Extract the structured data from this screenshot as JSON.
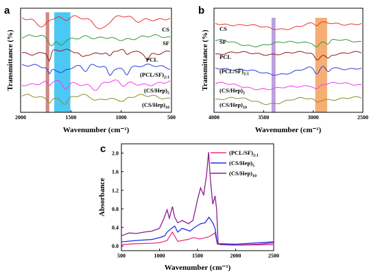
{
  "chart_data": [
    {
      "panel": "a",
      "type": "line",
      "xlabel": "Wavenumber (cm⁻¹)",
      "ylabel": "Transmittance (%)",
      "xlim": [
        2000,
        500
      ],
      "xticks": [
        2000,
        1500,
        1000,
        500
      ],
      "highlight_bands": [
        {
          "from": 1750,
          "to": 1715,
          "color": "#c47670"
        },
        {
          "from": 1665,
          "to": 1505,
          "color": "#2bbef2"
        }
      ],
      "series": [
        {
          "name": "CS",
          "color": "#e8322e"
        },
        {
          "name": "SF",
          "color": "#2f9a38"
        },
        {
          "name": "PCL",
          "color": "#8f1a1a"
        },
        {
          "name": "(PCL/SF)2:1",
          "color": "#2e3ad6"
        },
        {
          "name": "(CS/Hep)5",
          "color": "#ee3cee"
        },
        {
          "name": "(CS/Hep)10",
          "color": "#8a8a2a"
        }
      ]
    },
    {
      "panel": "b",
      "type": "line",
      "xlabel": "Wavenumber (cm⁻¹)",
      "ylabel": "Transmittance (%)",
      "xlim": [
        4000,
        2500
      ],
      "xticks": [
        4000,
        3500,
        3000,
        2500
      ],
      "highlight_bands": [
        {
          "from": 3420,
          "to": 3380,
          "color": "#b08fd8"
        },
        {
          "from": 2980,
          "to": 2860,
          "color": "#f5a05a"
        }
      ],
      "series": [
        {
          "name": "CS",
          "color": "#e8322e"
        },
        {
          "name": "SF",
          "color": "#2f9a38"
        },
        {
          "name": "PCL",
          "color": "#8f1a1a"
        },
        {
          "name": "(PCL/SF)2:1",
          "color": "#2e3ad6"
        },
        {
          "name": "(CS/Hep)5",
          "color": "#ee3cee"
        },
        {
          "name": "(CS/Hep)10",
          "color": "#8a8a2a"
        }
      ]
    },
    {
      "panel": "c",
      "type": "line",
      "xlabel": "Wavenumber (cm⁻¹)",
      "ylabel": "Absorbance",
      "xlim": [
        500,
        2500
      ],
      "ylim": [
        -0.1,
        2.2
      ],
      "xticks": [
        500,
        1000,
        1500,
        2000,
        2500
      ],
      "yticks": [
        0.0,
        0.4,
        0.8,
        1.2,
        1.6,
        2.0
      ],
      "ytick_labels": [
        "0.0",
        "0.4",
        "0.8",
        "1.2",
        "1.6",
        "2.0"
      ],
      "legend_position": "top-right",
      "series": [
        {
          "name": "(PCL/SF)2:1",
          "color": "#ee2f80",
          "points": [
            [
              500,
              0.03
            ],
            [
              700,
              0.05
            ],
            [
              900,
              0.06
            ],
            [
              1000,
              0.07
            ],
            [
              1100,
              0.12
            ],
            [
              1170,
              0.3
            ],
            [
              1240,
              0.1
            ],
            [
              1300,
              0.12
            ],
            [
              1370,
              0.14
            ],
            [
              1450,
              0.18
            ],
            [
              1530,
              0.15
            ],
            [
              1650,
              0.2
            ],
            [
              1730,
              0.28
            ],
            [
              1760,
              0.04
            ],
            [
              2000,
              0.02
            ],
            [
              2500,
              0.03
            ]
          ]
        },
        {
          "name": "(CS/Hep)5",
          "color": "#1f2ee6",
          "points": [
            [
              500,
              0.09
            ],
            [
              700,
              0.12
            ],
            [
              900,
              0.14
            ],
            [
              1000,
              0.18
            ],
            [
              1070,
              0.22
            ],
            [
              1100,
              0.3
            ],
            [
              1160,
              0.38
            ],
            [
              1200,
              0.43
            ],
            [
              1240,
              0.3
            ],
            [
              1300,
              0.38
            ],
            [
              1400,
              0.32
            ],
            [
              1460,
              0.4
            ],
            [
              1540,
              0.48
            ],
            [
              1600,
              0.5
            ],
            [
              1650,
              0.62
            ],
            [
              1700,
              0.5
            ],
            [
              1730,
              0.38
            ],
            [
              1760,
              0.05
            ],
            [
              2000,
              0.04
            ],
            [
              2500,
              0.09
            ]
          ]
        },
        {
          "name": "(CS/Hep)10",
          "color": "#8b1b8f",
          "points": [
            [
              500,
              0.22
            ],
            [
              600,
              0.28
            ],
            [
              700,
              0.27
            ],
            [
              800,
              0.3
            ],
            [
              900,
              0.32
            ],
            [
              1000,
              0.38
            ],
            [
              1060,
              0.6
            ],
            [
              1100,
              0.78
            ],
            [
              1130,
              0.6
            ],
            [
              1170,
              0.85
            ],
            [
              1200,
              0.62
            ],
            [
              1240,
              0.5
            ],
            [
              1300,
              0.55
            ],
            [
              1380,
              0.48
            ],
            [
              1440,
              0.55
            ],
            [
              1500,
              1.0
            ],
            [
              1540,
              1.25
            ],
            [
              1580,
              1.1
            ],
            [
              1620,
              1.55
            ],
            [
              1645,
              2.02
            ],
            [
              1670,
              1.4
            ],
            [
              1700,
              0.9
            ],
            [
              1730,
              1.08
            ],
            [
              1750,
              0.8
            ],
            [
              1770,
              0.05
            ],
            [
              1800,
              0.03
            ],
            [
              2000,
              0.02
            ],
            [
              2300,
              0.04
            ],
            [
              2500,
              0.07
            ]
          ]
        }
      ]
    }
  ]
}
